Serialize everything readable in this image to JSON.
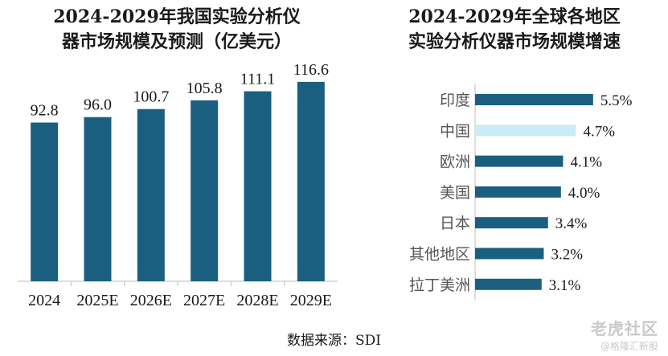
{
  "chart_data": [
    {
      "type": "bar",
      "title": "2024-2029年我国实验分析仪器市场规模及预测（亿美元）",
      "title_lines": [
        "2024-2029年我国实验分析仪",
        "器市场规模及预测（亿美元）"
      ],
      "categories": [
        "2024",
        "2025E",
        "2026E",
        "2027E",
        "2028E",
        "2029E"
      ],
      "values": [
        92.8,
        96.0,
        100.7,
        105.8,
        111.1,
        116.6
      ],
      "value_labels": [
        "92.8",
        "96.0",
        "100.7",
        "105.8",
        "111.1",
        "116.6"
      ],
      "ylim": [
        0,
        120
      ],
      "orientation": "vertical",
      "bar_color": "#1b5f80",
      "grid": false
    },
    {
      "type": "bar",
      "title": "2024-2029年全球各地区实验分析仪器市场规模增速",
      "title_lines": [
        "2024-2029年全球各地区",
        "实验分析仪器市场规模增速"
      ],
      "categories": [
        "印度",
        "中国",
        "欧洲",
        "美国",
        "日本",
        "其他地区",
        "拉丁美洲"
      ],
      "values": [
        5.5,
        4.7,
        4.1,
        4.0,
        3.4,
        3.2,
        3.1
      ],
      "value_labels": [
        "5.5%",
        "4.7%",
        "4.1%",
        "4.0%",
        "3.4%",
        "3.2%",
        "3.1%"
      ],
      "orientation": "horizontal",
      "xlim": [
        0,
        5.5
      ],
      "bar_colors": [
        "#1b5f80",
        "#c8ecf8",
        "#1b5f80",
        "#1b5f80",
        "#1b5f80",
        "#1b5f80",
        "#1b5f80"
      ],
      "grid": false
    }
  ],
  "source": "数据来源：SDI",
  "watermark": {
    "main": "老虎社区",
    "sub": "@格隆汇新股"
  }
}
